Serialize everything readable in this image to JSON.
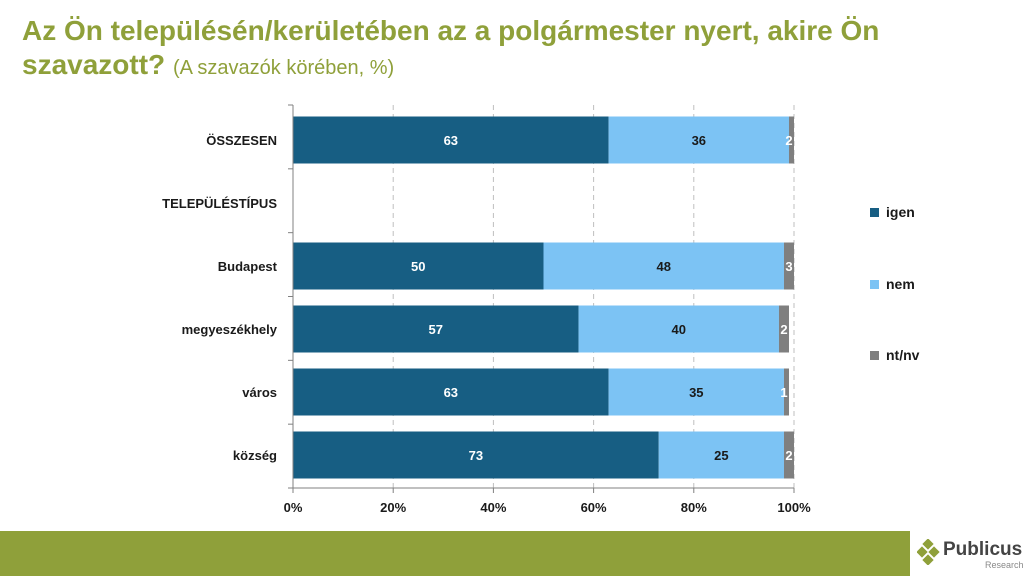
{
  "title": {
    "main": "Az Ön településén/kerületében az a polgármester nyert, akire Ön szavazott?",
    "sub": "(A szavazók körében, %)"
  },
  "chart_data": {
    "type": "bar",
    "orientation": "horizontal",
    "stacked": true,
    "categories": [
      "ÖSSZESEN",
      "TELEPÜLÉSTÍPUS",
      "Budapest",
      "megyeszékhely",
      "város",
      "község"
    ],
    "series": [
      {
        "name": "igen",
        "color": "#175E83",
        "values": [
          63,
          null,
          50,
          57,
          63,
          73
        ]
      },
      {
        "name": "nem",
        "color": "#7CC3F4",
        "values": [
          36,
          null,
          48,
          40,
          35,
          25
        ]
      },
      {
        "name": "nt/nv",
        "color": "#7F7F7F",
        "values": [
          2,
          null,
          3,
          2,
          1,
          2
        ]
      }
    ],
    "x_ticks": [
      "0%",
      "20%",
      "40%",
      "60%",
      "80%",
      "100%"
    ],
    "xlim": [
      0,
      100
    ],
    "grid": "vertical dashed",
    "legend_position": "right"
  },
  "logo": {
    "name": "Publicus",
    "sub": "Research"
  },
  "colors": {
    "accent": "#8FA03A",
    "igen": "#175E83",
    "nem": "#7CC3F4",
    "ntnv": "#7F7F7F"
  }
}
